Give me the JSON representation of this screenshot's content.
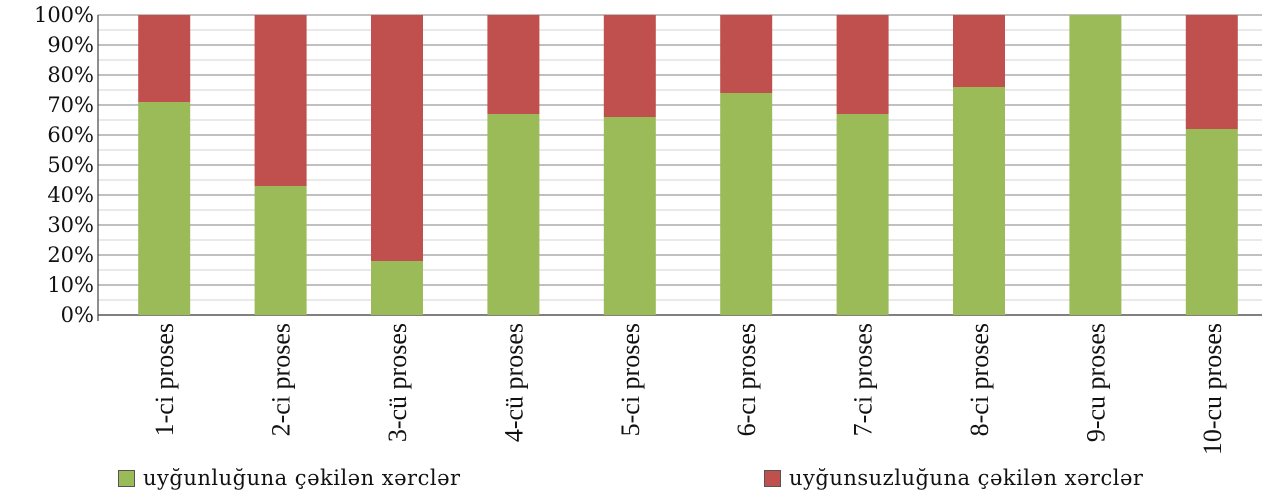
{
  "chart_data": {
    "type": "bar",
    "stacked": true,
    "normalized_percent": true,
    "categories": [
      "1-ci proses",
      "2-ci proses",
      "3-cü proses",
      "4-cü proses",
      "5-ci proses",
      "6-cı proses",
      "7-ci proses",
      "8-ci proses",
      "9-cu proses",
      "10-cu proses"
    ],
    "series": [
      {
        "name": "uyğunluğuna çəkilən xərclər",
        "color": "#9bbb59",
        "values": [
          71,
          43,
          18,
          67,
          66,
          74,
          67,
          76,
          100,
          62
        ]
      },
      {
        "name": "uyğunsuzluğuna çəkilən xərclər",
        "color": "#c0504d",
        "values": [
          29,
          57,
          82,
          33,
          34,
          26,
          33,
          24,
          0,
          38
        ]
      }
    ],
    "y_ticks": [
      "0%",
      "10%",
      "20%",
      "30%",
      "40%",
      "50%",
      "60%",
      "70%",
      "80%",
      "90%",
      "100%"
    ],
    "ylim": [
      0,
      100
    ],
    "grid": true,
    "legend_position": "bottom",
    "title": "",
    "xlabel": "",
    "ylabel": ""
  }
}
